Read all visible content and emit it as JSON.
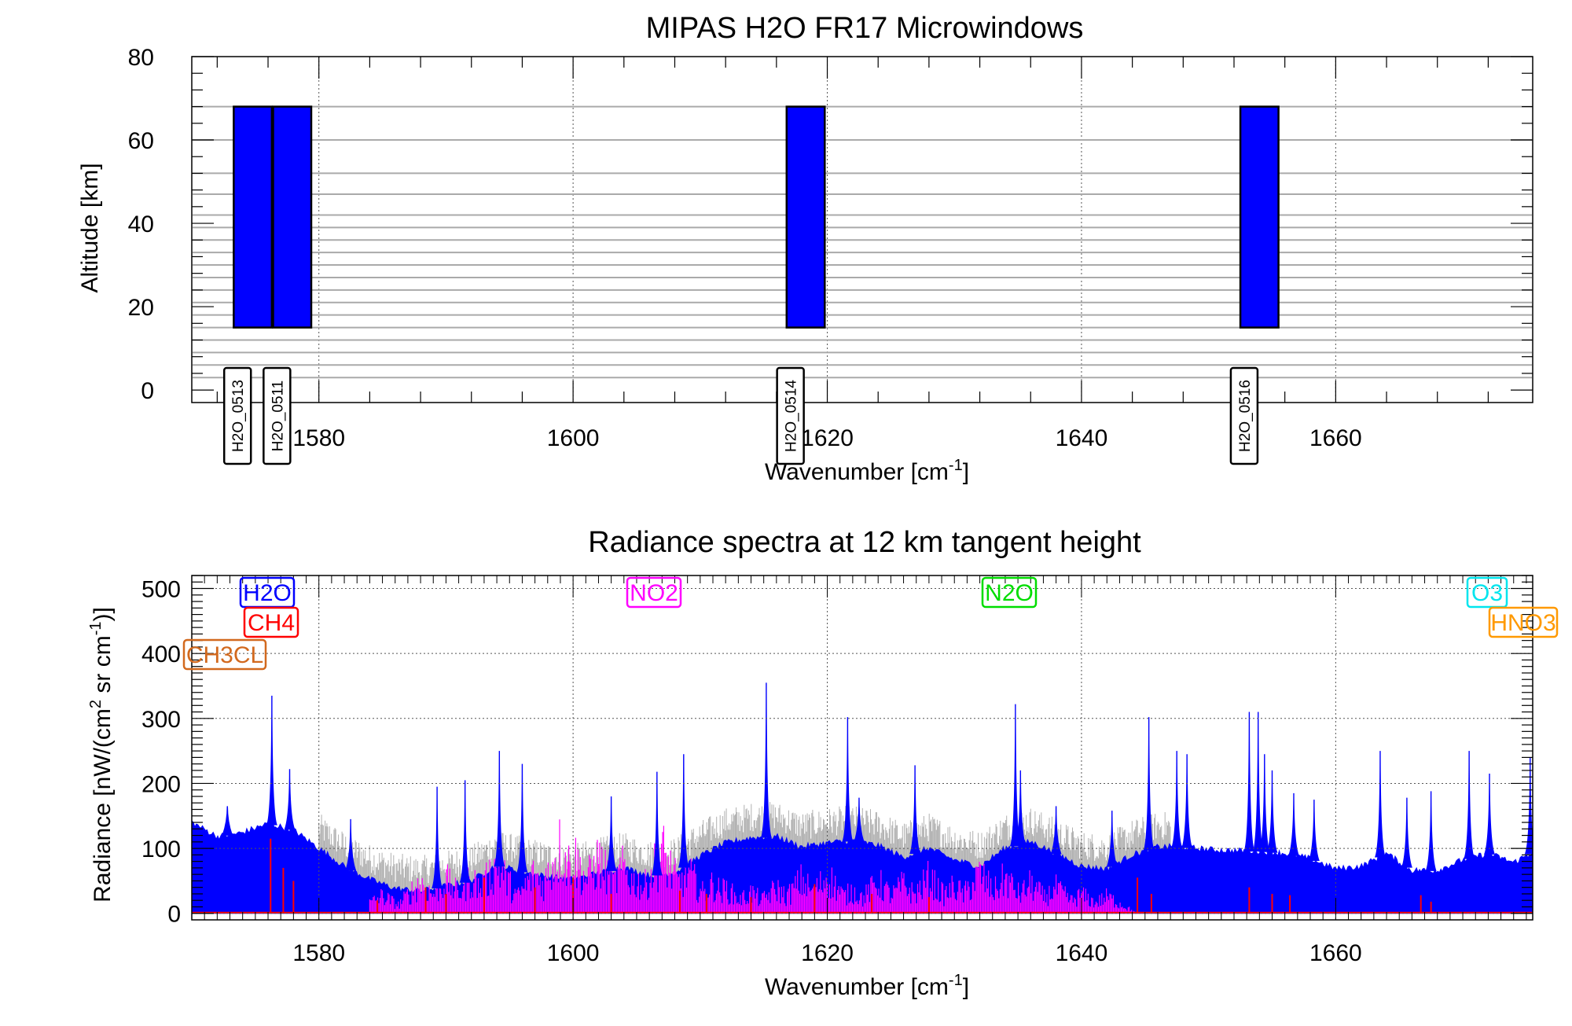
{
  "chart_data": [
    {
      "type": "bar",
      "title": "MIPAS H2O FR17 Microwindows",
      "xlabel": "Wavenumber [cm",
      "xlabel_sup": "-1",
      "xlabel_end": "]",
      "ylabel": "Altitude [km]",
      "xlim": [
        1570,
        1675.5
      ],
      "ylim": [
        -3,
        80
      ],
      "xticks": [
        1580,
        1600,
        1620,
        1640,
        1660
      ],
      "xtick_labels": [
        "1580",
        "1600",
        "1620",
        "1640",
        "1660"
      ],
      "yticks": [
        0,
        20,
        40,
        60,
        80
      ],
      "ytick_labels": [
        "0",
        "20",
        "40",
        "60",
        "80"
      ],
      "altitude_levels": [
        3,
        6,
        9,
        12,
        15,
        18,
        21,
        24,
        27,
        30,
        33,
        36,
        39,
        42,
        47,
        52,
        60,
        68
      ],
      "microwindows": [
        {
          "name": "H2O_0513",
          "x0": 1573.3,
          "x1": 1576.3,
          "ymin": 15,
          "ymax": 68
        },
        {
          "name": "H2O_0511",
          "x0": 1576.4,
          "x1": 1579.4,
          "ymin": 15,
          "ymax": 68
        },
        {
          "name": "H2O_0514",
          "x0": 1616.8,
          "x1": 1619.8,
          "ymin": 15,
          "ymax": 68
        },
        {
          "name": "H2O_0516",
          "x0": 1652.5,
          "x1": 1655.5,
          "ymin": 15,
          "ymax": 68
        }
      ],
      "bar_color": "#0000ff"
    },
    {
      "type": "area",
      "title": "Radiance spectra at 12 km tangent height",
      "xlabel": "Wavenumber [cm",
      "xlabel_sup": "-1",
      "xlabel_end": "]",
      "ylabel_parts": [
        "Radiance [nW/(cm",
        "2",
        " sr cm",
        "-1",
        ")]"
      ],
      "xlim": [
        1570,
        1675.5
      ],
      "ylim": [
        -10,
        520
      ],
      "xticks": [
        1580,
        1600,
        1620,
        1640,
        1660
      ],
      "xtick_labels": [
        "1580",
        "1600",
        "1620",
        "1640",
        "1660"
      ],
      "yticks": [
        0,
        100,
        200,
        300,
        400,
        500
      ],
      "ytick_labels": [
        "0",
        "100",
        "200",
        "300",
        "400",
        "500"
      ],
      "series": [
        {
          "name": "H2O",
          "color": "#0000ff",
          "legend_pos": "top-left"
        },
        {
          "name": "CH4",
          "color": "#ff0000",
          "legend_pos": "top-left"
        },
        {
          "name": "CH3CL",
          "color": "#d2691e",
          "legend_pos": "top-left"
        },
        {
          "name": "NO2",
          "color": "#ff00ff",
          "legend_pos": "top-center"
        },
        {
          "name": "N2O",
          "color": "#00dd00",
          "legend_pos": "top-center"
        },
        {
          "name": "O3",
          "color": "#00e5ee",
          "legend_pos": "top-right"
        },
        {
          "name": "HNO3",
          "color": "#ff9900",
          "legend_pos": "top-right"
        }
      ],
      "h2o_background": [
        [
          1570,
          140
        ],
        [
          1572,
          118
        ],
        [
          1574,
          124
        ],
        [
          1576,
          138
        ],
        [
          1578,
          128
        ],
        [
          1580,
          100
        ],
        [
          1582,
          72
        ],
        [
          1584,
          52
        ],
        [
          1586,
          38
        ],
        [
          1588,
          34
        ],
        [
          1590,
          42
        ],
        [
          1592,
          50
        ],
        [
          1594,
          74
        ],
        [
          1596,
          64
        ],
        [
          1598,
          56
        ],
        [
          1600,
          52
        ],
        [
          1602,
          62
        ],
        [
          1604,
          70
        ],
        [
          1606,
          58
        ],
        [
          1608,
          62
        ],
        [
          1610,
          88
        ],
        [
          1612,
          108
        ],
        [
          1614,
          116
        ],
        [
          1616,
          118
        ],
        [
          1618,
          102
        ],
        [
          1620,
          108
        ],
        [
          1622,
          112
        ],
        [
          1624,
          104
        ],
        [
          1626,
          86
        ],
        [
          1628,
          100
        ],
        [
          1630,
          82
        ],
        [
          1632,
          72
        ],
        [
          1634,
          100
        ],
        [
          1636,
          110
        ],
        [
          1638,
          92
        ],
        [
          1640,
          72
        ],
        [
          1642,
          68
        ],
        [
          1644,
          90
        ],
        [
          1646,
          102
        ],
        [
          1648,
          102
        ],
        [
          1650,
          98
        ],
        [
          1652,
          96
        ],
        [
          1654,
          96
        ],
        [
          1656,
          92
        ],
        [
          1658,
          84
        ],
        [
          1660,
          68
        ],
        [
          1662,
          72
        ],
        [
          1664,
          92
        ],
        [
          1666,
          66
        ],
        [
          1668,
          66
        ],
        [
          1670,
          82
        ],
        [
          1672,
          92
        ],
        [
          1674,
          78
        ],
        [
          1675.5,
          94
        ]
      ],
      "h2o_peaks": [
        [
          1572.8,
          165
        ],
        [
          1576.3,
          335
        ],
        [
          1577.7,
          222
        ],
        [
          1582.5,
          145
        ],
        [
          1589.3,
          195
        ],
        [
          1591.5,
          205
        ],
        [
          1594.2,
          250
        ],
        [
          1596.0,
          230
        ],
        [
          1603.0,
          180
        ],
        [
          1606.6,
          218
        ],
        [
          1608.7,
          245
        ],
        [
          1615.2,
          355
        ],
        [
          1621.6,
          302
        ],
        [
          1622.5,
          178
        ],
        [
          1626.9,
          228
        ],
        [
          1634.8,
          322
        ],
        [
          1635.2,
          220
        ],
        [
          1638.0,
          165
        ],
        [
          1642.4,
          158
        ],
        [
          1645.3,
          302
        ],
        [
          1647.5,
          250
        ],
        [
          1648.3,
          245
        ],
        [
          1653.2,
          310
        ],
        [
          1653.9,
          310
        ],
        [
          1654.4,
          245
        ],
        [
          1655.0,
          220
        ],
        [
          1656.7,
          185
        ],
        [
          1658.3,
          175
        ],
        [
          1663.5,
          250
        ],
        [
          1665.6,
          178
        ],
        [
          1667.5,
          188
        ],
        [
          1670.5,
          250
        ],
        [
          1672.1,
          215
        ],
        [
          1675.3,
          240
        ]
      ],
      "no2_peaks": [
        [
          1585,
          42
        ],
        [
          1588,
          75
        ],
        [
          1590,
          80
        ],
        [
          1592,
          85
        ],
        [
          1594,
          120
        ],
        [
          1597,
          95
        ],
        [
          1599,
          160
        ],
        [
          1600,
          140
        ],
        [
          1601,
          90
        ],
        [
          1602,
          130
        ],
        [
          1604,
          110
        ],
        [
          1605,
          80
        ],
        [
          1607,
          150
        ],
        [
          1609,
          100
        ],
        [
          1611,
          70
        ],
        [
          1612,
          60
        ],
        [
          1614,
          50
        ],
        [
          1616,
          60
        ],
        [
          1618,
          80
        ],
        [
          1620,
          90
        ],
        [
          1622,
          55
        ],
        [
          1624,
          75
        ],
        [
          1626,
          70
        ],
        [
          1628,
          85
        ],
        [
          1630,
          65
        ],
        [
          1632,
          95
        ],
        [
          1634,
          85
        ],
        [
          1636,
          70
        ],
        [
          1638,
          60
        ],
        [
          1640,
          45
        ],
        [
          1642,
          40
        ]
      ],
      "ch4_peaks": [
        [
          1576.2,
          115
        ],
        [
          1577.2,
          70
        ],
        [
          1578.0,
          50
        ],
        [
          1584.6,
          20
        ],
        [
          1588.4,
          40
        ],
        [
          1590.0,
          30
        ],
        [
          1593.0,
          55
        ],
        [
          1597.0,
          40
        ],
        [
          1600.0,
          55
        ],
        [
          1603.0,
          30
        ],
        [
          1608.4,
          35
        ],
        [
          1610.5,
          30
        ],
        [
          1614.0,
          25
        ],
        [
          1619.0,
          45
        ],
        [
          1623.5,
          30
        ],
        [
          1628.0,
          25
        ],
        [
          1644.4,
          55
        ],
        [
          1645.5,
          30
        ],
        [
          1653.2,
          40
        ],
        [
          1655.0,
          30
        ],
        [
          1656.4,
          28
        ],
        [
          1666.7,
          28
        ],
        [
          1667.5,
          18
        ]
      ],
      "grey_noise_range": [
        1580,
        1647
      ]
    }
  ]
}
